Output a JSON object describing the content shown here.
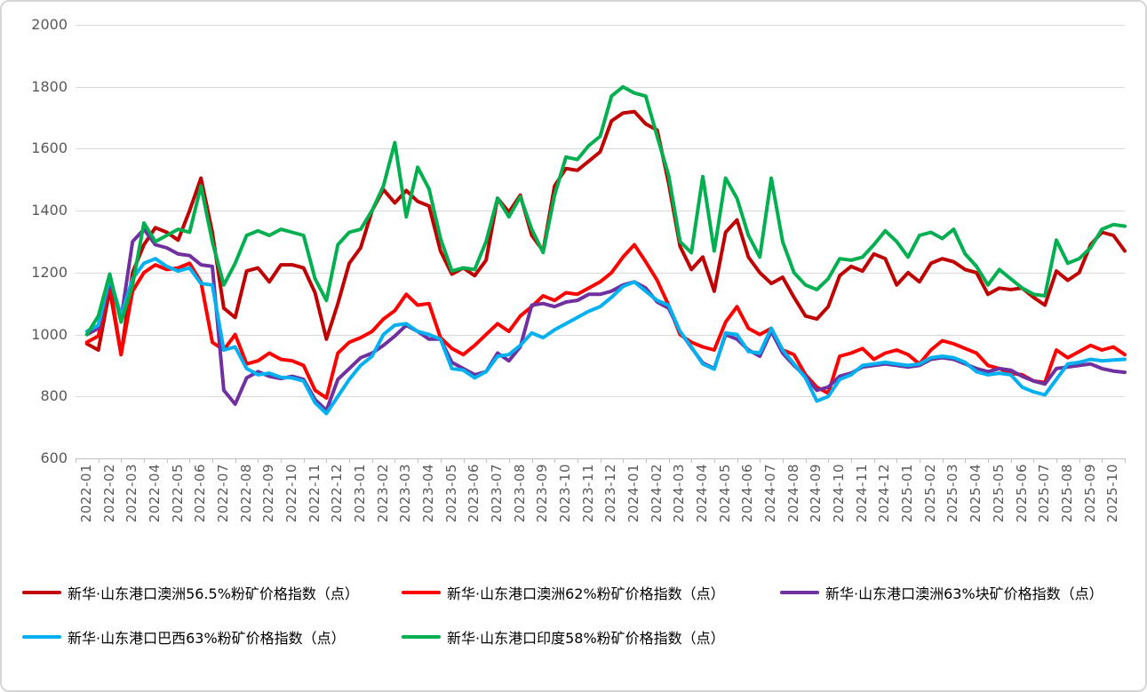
{
  "chart_data": {
    "type": "line",
    "title": "",
    "grid": true,
    "legend_position": "bottom",
    "y_axis": {
      "min": 600,
      "max": 2000,
      "step": 200,
      "tick_labels": [
        "2000",
        "1800",
        "1600",
        "1400",
        "1200",
        "1000",
        "800",
        "600"
      ]
    },
    "x_axis": {
      "unit": "month",
      "samples_per_month": 2,
      "labels": [
        "2022-01",
        "2022-02",
        "2022-03",
        "2022-04",
        "2022-05",
        "2022-06",
        "2022-07",
        "2022-08",
        "2022-09",
        "2022-10",
        "2022-11",
        "2022-12",
        "2023-01",
        "2023-02",
        "2023-03",
        "2023-04",
        "2023-05",
        "2023-06",
        "2023-07",
        "2023-08",
        "2023-09",
        "2023-10",
        "2023-11",
        "2023-12",
        "2024-01",
        "2024-02",
        "2024-03",
        "2024-04",
        "2024-05",
        "2024-06",
        "2024-07",
        "2024-08",
        "2024-09",
        "2024-10",
        "2024-11",
        "2024-12",
        "2025-01",
        "2025-02",
        "2025-03",
        "2025-04",
        "2025-05",
        "2025-06",
        "2025-07",
        "2025-08",
        "2025-09",
        "2025-10"
      ]
    },
    "series": [
      {
        "key": "au565",
        "name": "新华·山东港口澳洲56.5%粉矿价格指数（点）",
        "color": "#C00000",
        "values": [
          970,
          950,
          1145,
          935,
          1200,
          1290,
          1345,
          1330,
          1305,
          1400,
          1505,
          1330,
          1085,
          1055,
          1205,
          1215,
          1170,
          1225,
          1225,
          1215,
          1135,
          985,
          1100,
          1230,
          1280,
          1400,
          1468,
          1425,
          1465,
          1430,
          1415,
          1270,
          1195,
          1215,
          1190,
          1240,
          1440,
          1395,
          1450,
          1320,
          1270,
          1480,
          1536,
          1530,
          1560,
          1590,
          1690,
          1715,
          1720,
          1680,
          1660,
          1490,
          1285,
          1210,
          1250,
          1140,
          1330,
          1370,
          1250,
          1200,
          1165,
          1185,
          1120,
          1060,
          1050,
          1090,
          1190,
          1220,
          1205,
          1260,
          1245,
          1160,
          1200,
          1170,
          1230,
          1245,
          1235,
          1210,
          1200,
          1130,
          1150,
          1145,
          1150,
          1120,
          1095,
          1205,
          1175,
          1200,
          1290,
          1330,
          1320,
          1270
        ]
      },
      {
        "key": "au62",
        "name": "新华·山东港口澳洲62%粉矿价格指数（点）",
        "color": "#FF0000",
        "values": [
          975,
          995,
          1165,
          935,
          1140,
          1200,
          1225,
          1210,
          1215,
          1230,
          1170,
          975,
          950,
          1000,
          905,
          915,
          940,
          920,
          915,
          900,
          820,
          795,
          940,
          975,
          990,
          1010,
          1050,
          1077,
          1130,
          1095,
          1100,
          990,
          955,
          935,
          965,
          1000,
          1035,
          1010,
          1060,
          1090,
          1125,
          1110,
          1135,
          1130,
          1150,
          1170,
          1200,
          1250,
          1290,
          1235,
          1175,
          1095,
          1000,
          975,
          960,
          950,
          1040,
          1090,
          1020,
          1000,
          1020,
          950,
          935,
          870,
          830,
          810,
          930,
          940,
          955,
          920,
          940,
          950,
          935,
          905,
          950,
          980,
          970,
          955,
          940,
          900,
          890,
          875,
          870,
          850,
          845,
          950,
          925,
          945,
          965,
          950,
          960,
          935
        ]
      },
      {
        "key": "au63lump",
        "name": "新华·山东港口澳洲63%块矿价格指数（点）",
        "color": "#7030A0",
        "values": [
          1000,
          1020,
          1175,
          1050,
          1300,
          1340,
          1290,
          1280,
          1260,
          1255,
          1225,
          1220,
          820,
          775,
          860,
          880,
          865,
          858,
          865,
          855,
          790,
          755,
          855,
          890,
          925,
          940,
          965,
          995,
          1030,
          1010,
          985,
          985,
          910,
          890,
          870,
          880,
          940,
          915,
          960,
          1095,
          1100,
          1090,
          1105,
          1110,
          1130,
          1130,
          1140,
          1160,
          1170,
          1150,
          1105,
          1085,
          1010,
          958,
          908,
          890,
          1000,
          985,
          950,
          930,
          1010,
          940,
          900,
          865,
          820,
          830,
          865,
          875,
          895,
          900,
          905,
          900,
          895,
          900,
          920,
          925,
          920,
          905,
          890,
          880,
          890,
          885,
          865,
          850,
          840,
          890,
          895,
          900,
          905,
          890,
          882,
          878
        ]
      },
      {
        "key": "br63",
        "name": "新华·山东港口巴西63%粉矿价格指数（点）",
        "color": "#00B0F0",
        "values": [
          1010,
          1030,
          1185,
          1060,
          1180,
          1230,
          1245,
          1220,
          1205,
          1215,
          1165,
          1160,
          950,
          960,
          890,
          870,
          875,
          862,
          860,
          850,
          780,
          745,
          800,
          855,
          900,
          930,
          1000,
          1030,
          1035,
          1010,
          1000,
          985,
          890,
          885,
          860,
          880,
          930,
          935,
          965,
          1005,
          990,
          1015,
          1035,
          1055,
          1075,
          1090,
          1120,
          1155,
          1170,
          1140,
          1110,
          1095,
          1010,
          960,
          905,
          888,
          1005,
          1000,
          945,
          940,
          1020,
          950,
          905,
          860,
          785,
          800,
          855,
          870,
          900,
          905,
          910,
          905,
          900,
          905,
          925,
          930,
          925,
          910,
          880,
          870,
          875,
          870,
          830,
          815,
          805,
          855,
          905,
          910,
          920,
          915,
          918,
          920
        ]
      },
      {
        "key": "in58",
        "name": "新华·山东港口印度58%粉矿价格指数（点）",
        "color": "#00B050",
        "values": [
          1000,
          1060,
          1195,
          1040,
          1160,
          1360,
          1300,
          1320,
          1340,
          1330,
          1480,
          1300,
          1160,
          1230,
          1320,
          1335,
          1320,
          1340,
          1330,
          1320,
          1180,
          1110,
          1290,
          1330,
          1340,
          1400,
          1480,
          1620,
          1380,
          1540,
          1470,
          1310,
          1205,
          1215,
          1210,
          1300,
          1440,
          1380,
          1445,
          1340,
          1265,
          1450,
          1573,
          1565,
          1610,
          1640,
          1770,
          1800,
          1780,
          1770,
          1640,
          1515,
          1300,
          1264,
          1510,
          1270,
          1505,
          1440,
          1320,
          1250,
          1505,
          1300,
          1200,
          1160,
          1145,
          1180,
          1245,
          1240,
          1250,
          1290,
          1335,
          1300,
          1250,
          1320,
          1330,
          1310,
          1340,
          1260,
          1220,
          1160,
          1210,
          1180,
          1150,
          1130,
          1125,
          1305,
          1230,
          1245,
          1280,
          1340,
          1355,
          1350
        ]
      }
    ],
    "legend_rows": [
      [
        0,
        1,
        2
      ],
      [
        3,
        4
      ]
    ]
  }
}
